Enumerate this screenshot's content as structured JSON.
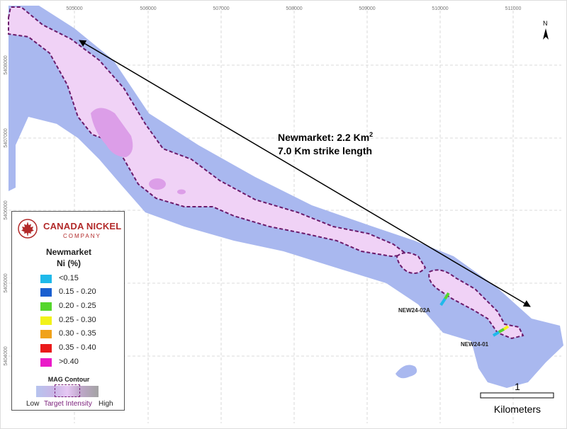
{
  "map": {
    "easting_ticks": [
      "505000",
      "506000",
      "507000",
      "508000",
      "509000",
      "510000",
      "511000"
    ],
    "northing_ticks": [
      "5408000",
      "5407000",
      "5406000",
      "5405000",
      "5404000"
    ],
    "north_label": "N",
    "annotation": {
      "line1": "Newmarket: 2.2 Km",
      "line1_sup": "2",
      "line2": "7.0 Km strike length"
    },
    "drill_holes": [
      {
        "label": "NEW24-02A"
      },
      {
        "label": "NEW24-01"
      }
    ],
    "scale_bar": {
      "value": "1",
      "unit": "Kilometers"
    },
    "colors": {
      "mag_low_fill": "#a9b8ef",
      "target_fill": "#f0d2f6",
      "target_core": "#dc9ee8",
      "contour_line": "#6b1a6b"
    }
  },
  "legend": {
    "company_name": "CANADA NICKEL",
    "company_sub": "COMPANY",
    "title_line1": "Newmarket",
    "title_line2": "Ni (%)",
    "items": [
      {
        "label": "<0.15",
        "color": "#1fb9ea"
      },
      {
        "label": "0.15 - 0.20",
        "color": "#1a5fd0"
      },
      {
        "label": "0.20 - 0.25",
        "color": "#55d62b"
      },
      {
        "label": "0.25 - 0.30",
        "color": "#f2f21a"
      },
      {
        "label": "0.30 - 0.35",
        "color": "#f0a21a"
      },
      {
        "label": "0.35 - 0.40",
        "color": "#ea1a1a"
      },
      {
        "label": ">0.40",
        "color": "#ea1ac8"
      }
    ],
    "mag_title": "MAG Contour",
    "mag_low": "Low",
    "mag_target": "Target Intensity",
    "mag_high": "High"
  }
}
